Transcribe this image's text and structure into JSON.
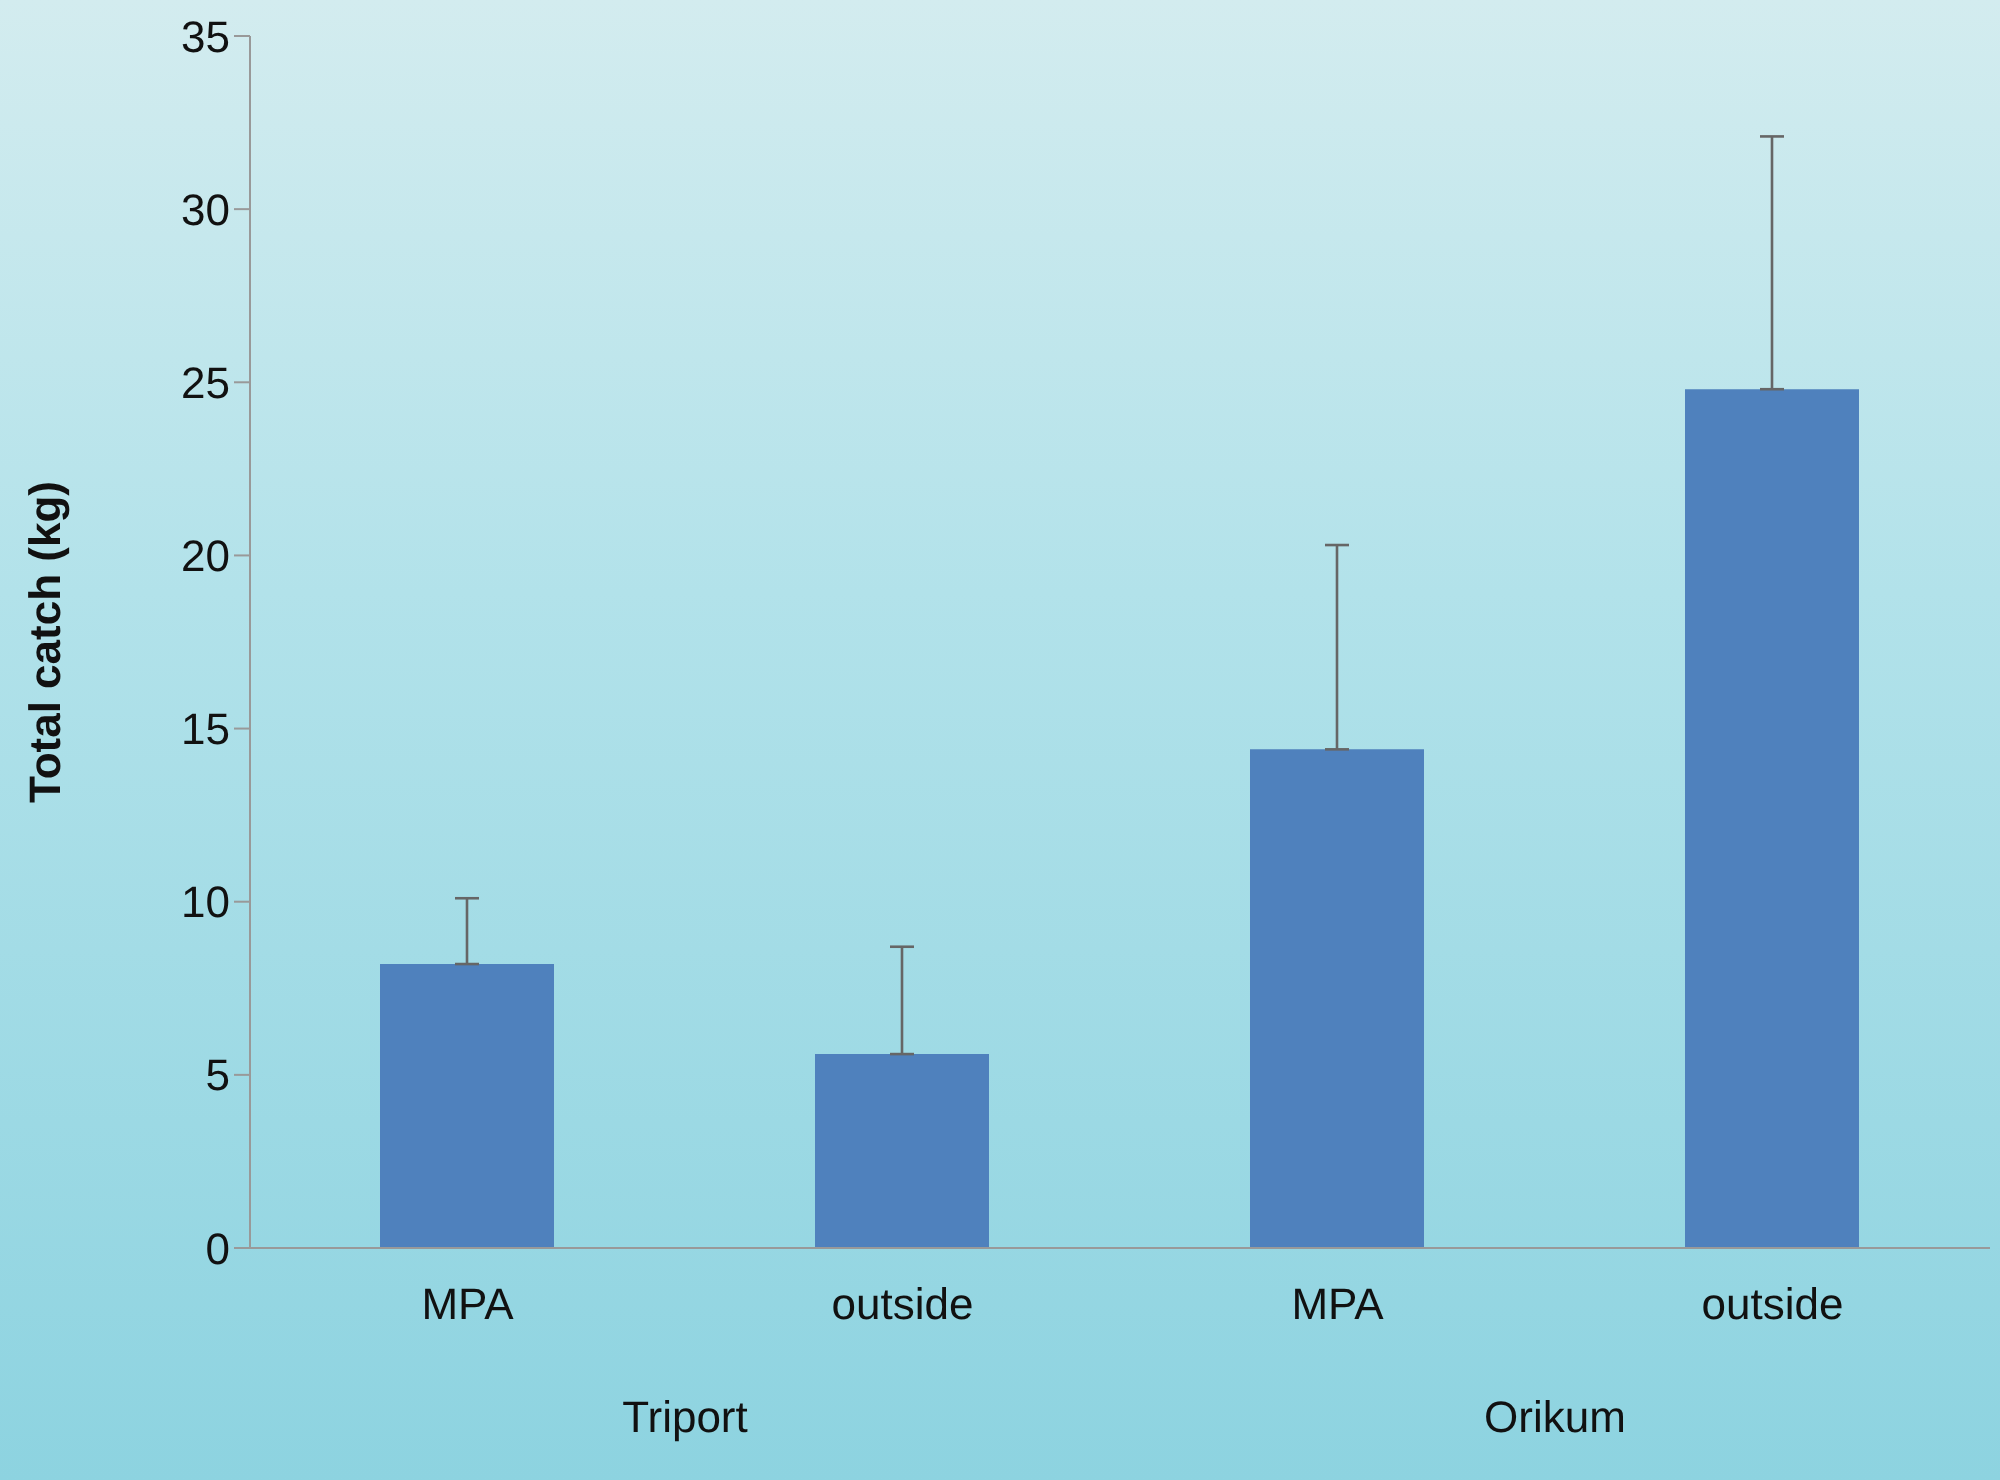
{
  "chart_data": {
    "type": "bar",
    "ylabel": "Total catch (kg)",
    "categories": [
      "MPA",
      "outside",
      "MPA",
      "outside"
    ],
    "values": [
      8.2,
      5.6,
      14.4,
      24.8
    ],
    "errors": [
      [
        8.2,
        10.1
      ],
      [
        5.6,
        8.7
      ],
      [
        14.4,
        20.3
      ],
      [
        24.8,
        32.1
      ]
    ],
    "color": "#4f81bd",
    "ylim": [
      0,
      35
    ],
    "yticks": [
      0,
      5,
      10,
      15,
      20,
      25,
      30,
      35
    ],
    "annotations": [
      "Triport",
      "Orikum"
    ],
    "grid": false,
    "legend": false
  }
}
